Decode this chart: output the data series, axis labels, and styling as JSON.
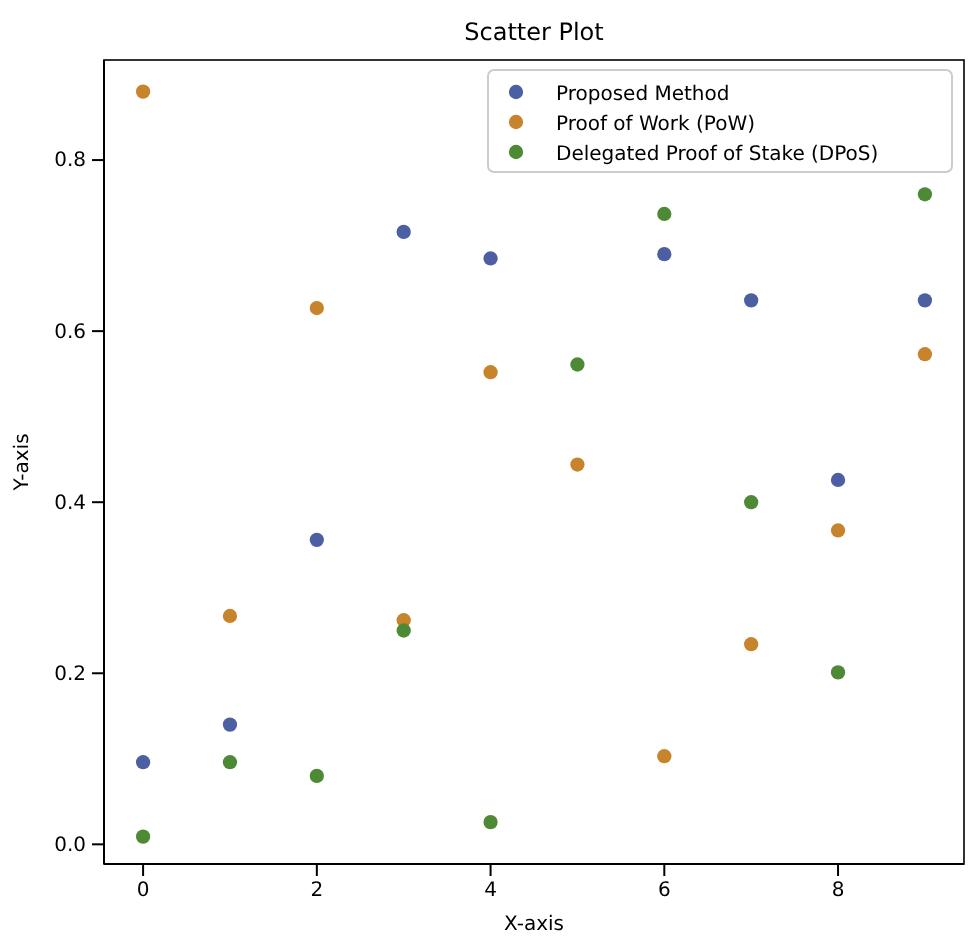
{
  "chart_data": {
    "type": "scatter",
    "title": "Scatter Plot",
    "xlabel": "X-axis",
    "ylabel": "Y-axis",
    "x": [
      0,
      1,
      2,
      3,
      4,
      5,
      6,
      7,
      8,
      9
    ],
    "series": [
      {
        "name": "Proposed Method",
        "color": "#4c5fa3",
        "values": [
          0.096,
          0.14,
          0.356,
          0.716,
          0.685,
          null,
          0.69,
          0.636,
          0.426,
          0.636
        ]
      },
      {
        "name": "Proof of Work (PoW)",
        "color": "#c8832d",
        "values": [
          0.88,
          0.267,
          0.627,
          0.262,
          0.552,
          0.444,
          0.103,
          0.234,
          0.367,
          0.573
        ]
      },
      {
        "name": "Delegated Proof of Stake (DPoS)",
        "color": "#4e8a35",
        "values": [
          0.009,
          0.096,
          0.08,
          0.25,
          0.026,
          0.561,
          0.737,
          0.4,
          0.201,
          0.76
        ]
      }
    ],
    "xlim": [
      -0.45,
      9.45
    ],
    "ylim": [
      -0.023,
      0.917
    ],
    "xticks": [
      0,
      2,
      4,
      6,
      8
    ],
    "yticks": [
      {
        "value": 0,
        "label": "0.0"
      },
      {
        "value": 0.2,
        "label": "0.2"
      },
      {
        "value": 0.4,
        "label": "0.4"
      },
      {
        "value": 0.6,
        "label": "0.6"
      },
      {
        "value": 0.8,
        "label": "0.8"
      }
    ],
    "legend": "top right",
    "marker": "circle",
    "grid": false
  }
}
